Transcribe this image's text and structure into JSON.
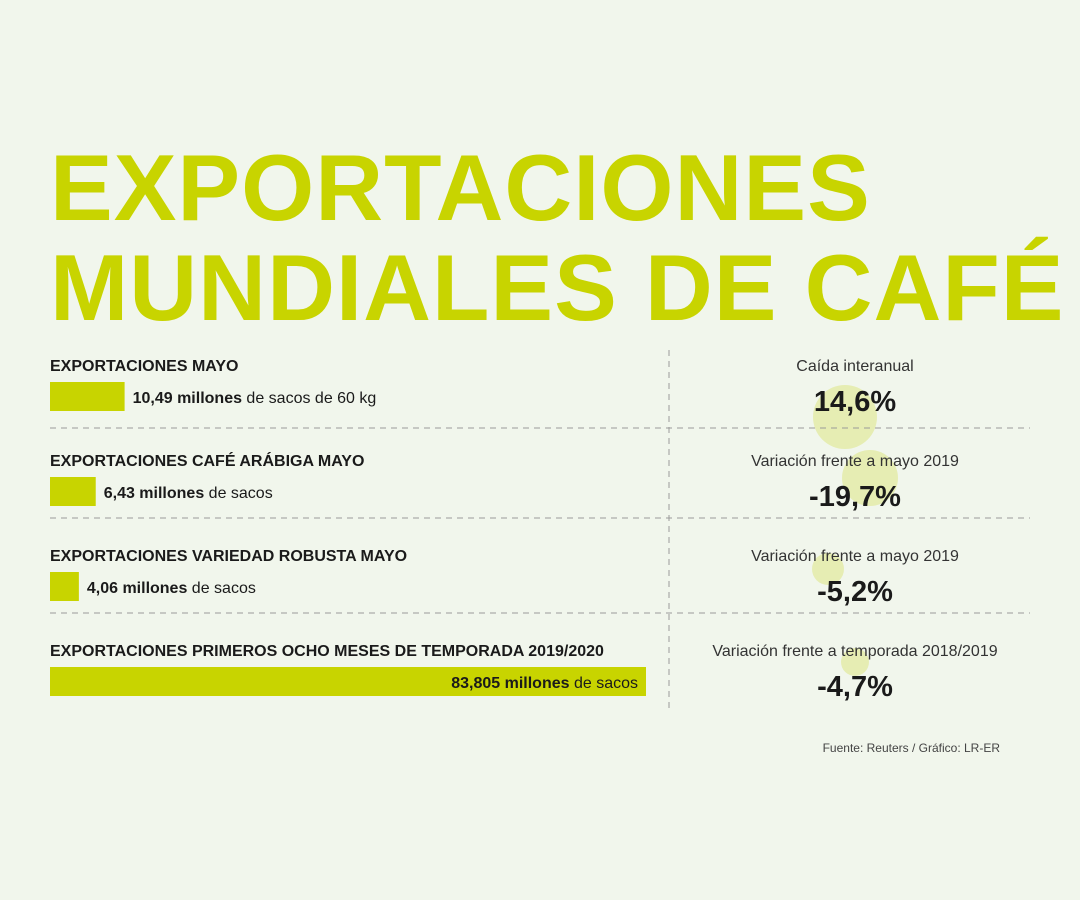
{
  "title": {
    "line1": "EXPORTACIONES",
    "line2": "MUNDIALES DE CAFÉ"
  },
  "colors": {
    "accent": "#c8d400",
    "circle": "#e2eaa0",
    "text": "#1a1a1a",
    "divider": "#9a9a9a"
  },
  "chart_data": {
    "type": "bar",
    "grid": false,
    "rows": [
      {
        "header": "EXPORTACIONES MAYO",
        "value": 10.49,
        "value_text": "10,49 millones",
        "unit_text": "de sacos de 60 kg",
        "change_caption": "Caída interanual",
        "change_text": "14,6%",
        "change_value": 14.6
      },
      {
        "header": "EXPORTACIONES CAFÉ ARÁBIGA MAYO",
        "value": 6.43,
        "value_text": "6,43 millones",
        "unit_text": "de sacos",
        "change_caption": "Variación frente a mayo 2019",
        "change_text": "-19,7%",
        "change_value": -19.7
      },
      {
        "header": "EXPORTACIONES VARIEDAD ROBUSTA MAYO",
        "value": 4.06,
        "value_text": "4,06 millones",
        "unit_text": "de sacos",
        "change_caption": "Variación frente a mayo 2019",
        "change_text": "-5,2%",
        "change_value": -5.2
      },
      {
        "header": "EXPORTACIONES PRIMEROS OCHO MESES DE TEMPORADA 2019/2020",
        "value": 83.805,
        "value_text": "83,805 millones",
        "unit_text": "de sacos",
        "change_caption": "Variación frente a temporada 2018/2019",
        "change_text": "-4,7%",
        "change_value": -4.7
      }
    ]
  },
  "source": "Fuente: Reuters / Gráfico: LR-ER"
}
